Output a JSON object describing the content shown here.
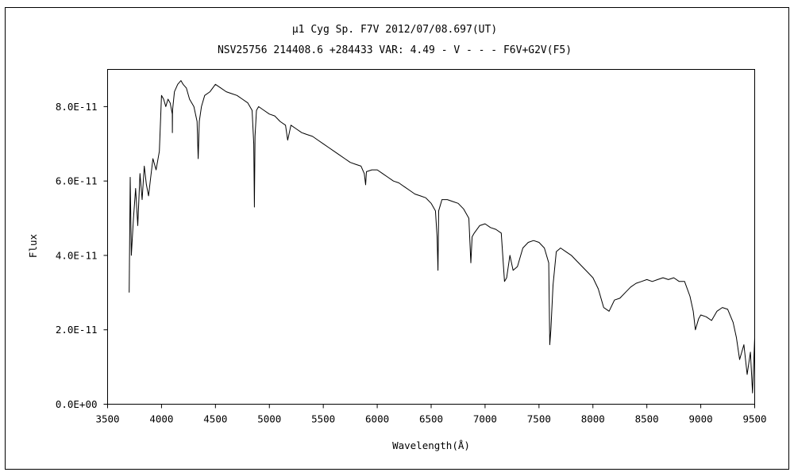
{
  "chart_data": {
    "type": "line",
    "title": "μ1 Cyg    Sp. F7V    2012/07/08.697(UT)",
    "subtitle": "NSV25756 214408.6 +284433 VAR: 4.49 - V - - - F6V+G2V(F5)",
    "xlabel": "Wavelength(Å)",
    "ylabel": "Flux",
    "xlim": [
      3500,
      9500
    ],
    "ylim": [
      0,
      9e-11
    ],
    "xticks": [
      "3500",
      "4000",
      "4500",
      "5000",
      "5500",
      "6000",
      "6500",
      "7000",
      "7500",
      "8000",
      "8500",
      "9000",
      "9500"
    ],
    "yticks": [
      "0.0E+00",
      "2.0E-11",
      "4.0E-11",
      "6.0E-11",
      "8.0E-11"
    ],
    "grid": false,
    "series": [
      {
        "color": "#000000",
        "x": [
          3700,
          3710,
          3720,
          3740,
          3760,
          3780,
          3800,
          3820,
          3840,
          3860,
          3880,
          3900,
          3920,
          3950,
          3980,
          4000,
          4020,
          4040,
          4060,
          4080,
          4100,
          4101,
          4102,
          4120,
          4150,
          4180,
          4200,
          4230,
          4260,
          4300,
          4330,
          4340,
          4350,
          4370,
          4400,
          4450,
          4500,
          4550,
          4600,
          4650,
          4700,
          4750,
          4800,
          4840,
          4855,
          4861,
          4867,
          4880,
          4900,
          4950,
          5000,
          5050,
          5100,
          5150,
          5170,
          5185,
          5200,
          5250,
          5300,
          5350,
          5400,
          5450,
          5500,
          5550,
          5600,
          5650,
          5700,
          5750,
          5800,
          5850,
          5880,
          5893,
          5900,
          5950,
          6000,
          6050,
          6100,
          6150,
          6200,
          6250,
          6300,
          6350,
          6400,
          6450,
          6500,
          6540,
          6555,
          6563,
          6570,
          6600,
          6650,
          6700,
          6750,
          6800,
          6850,
          6868,
          6880,
          6900,
          6950,
          7000,
          7050,
          7100,
          7150,
          7180,
          7200,
          7230,
          7260,
          7300,
          7350,
          7400,
          7450,
          7500,
          7550,
          7590,
          7600,
          7610,
          7630,
          7660,
          7700,
          7750,
          7800,
          7850,
          7900,
          7950,
          8000,
          8050,
          8100,
          8150,
          8200,
          8250,
          8300,
          8350,
          8400,
          8450,
          8500,
          8550,
          8600,
          8650,
          8700,
          8750,
          8800,
          8850,
          8900,
          8930,
          8950,
          8980,
          9000,
          9050,
          9100,
          9150,
          9200,
          9250,
          9300,
          9330,
          9360,
          9400,
          9430,
          9460,
          9480,
          9500
        ],
        "y": [
          3e-11,
          6.1e-11,
          4e-11,
          5e-11,
          5.8e-11,
          4.8e-11,
          6.2e-11,
          5.5e-11,
          6.4e-11,
          5.9e-11,
          5.6e-11,
          6.1e-11,
          6.6e-11,
          6.3e-11,
          6.8e-11,
          8.3e-11,
          8.2e-11,
          8e-11,
          8.2e-11,
          8.1e-11,
          7.8e-11,
          7.3e-11,
          7.9e-11,
          8.4e-11,
          8.6e-11,
          8.7e-11,
          8.6e-11,
          8.5e-11,
          8.2e-11,
          8e-11,
          7.6e-11,
          6.6e-11,
          7.6e-11,
          8e-11,
          8.3e-11,
          8.4e-11,
          8.6e-11,
          8.5e-11,
          8.4e-11,
          8.35e-11,
          8.3e-11,
          8.2e-11,
          8.1e-11,
          7.9e-11,
          7e-11,
          5.3e-11,
          7.2e-11,
          7.9e-11,
          8e-11,
          7.9e-11,
          7.8e-11,
          7.75e-11,
          7.6e-11,
          7.5e-11,
          7.1e-11,
          7.3e-11,
          7.5e-11,
          7.4e-11,
          7.3e-11,
          7.25e-11,
          7.2e-11,
          7.1e-11,
          7e-11,
          6.9e-11,
          6.8e-11,
          6.7e-11,
          6.6e-11,
          6.5e-11,
          6.45e-11,
          6.4e-11,
          6.2e-11,
          5.9e-11,
          6.25e-11,
          6.3e-11,
          6.3e-11,
          6.2e-11,
          6.1e-11,
          6e-11,
          5.95e-11,
          5.85e-11,
          5.75e-11,
          5.65e-11,
          5.6e-11,
          5.55e-11,
          5.4e-11,
          5.2e-11,
          4.5e-11,
          3.6e-11,
          5.2e-11,
          5.5e-11,
          5.5e-11,
          5.45e-11,
          5.4e-11,
          5.25e-11,
          5e-11,
          3.8e-11,
          4.5e-11,
          4.6e-11,
          4.8e-11,
          4.85e-11,
          4.75e-11,
          4.7e-11,
          4.6e-11,
          3.3e-11,
          3.4e-11,
          4e-11,
          3.6e-11,
          3.7e-11,
          4.2e-11,
          4.35e-11,
          4.4e-11,
          4.35e-11,
          4.2e-11,
          3.8e-11,
          1.6e-11,
          2e-11,
          3.2e-11,
          4.1e-11,
          4.2e-11,
          4.1e-11,
          4e-11,
          3.85e-11,
          3.7e-11,
          3.55e-11,
          3.4e-11,
          3.1e-11,
          2.6e-11,
          2.5e-11,
          2.8e-11,
          2.85e-11,
          3e-11,
          3.15e-11,
          3.25e-11,
          3.3e-11,
          3.35e-11,
          3.3e-11,
          3.35e-11,
          3.4e-11,
          3.35e-11,
          3.4e-11,
          3.3e-11,
          3.3e-11,
          2.9e-11,
          2.5e-11,
          2e-11,
          2.3e-11,
          2.4e-11,
          2.35e-11,
          2.25e-11,
          2.5e-11,
          2.6e-11,
          2.55e-11,
          2.2e-11,
          1.8e-11,
          1.2e-11,
          1.6e-11,
          8e-12,
          1.4e-11,
          3e-12,
          1.8e-11
        ]
      }
    ]
  }
}
